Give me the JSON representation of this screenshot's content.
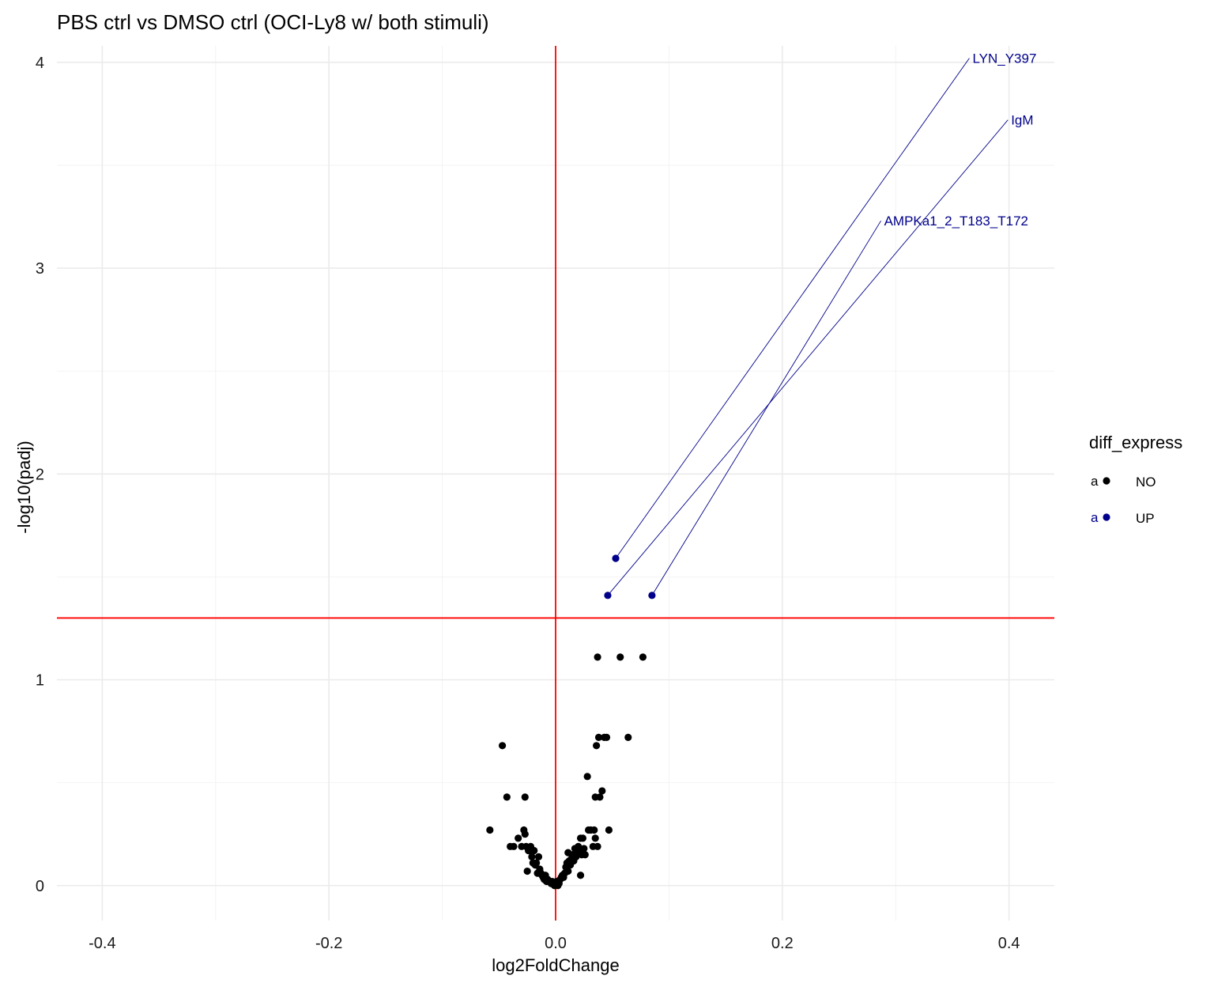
{
  "chart_data": {
    "type": "scatter",
    "title": "PBS ctrl vs DMSO ctrl (OCI-Ly8 w/ both stimuli)",
    "xlabel": "log2FoldChange",
    "ylabel": "-log10(padj)",
    "xlim": [
      -0.44,
      0.44
    ],
    "ylim": [
      -0.17,
      4.08
    ],
    "x_ticks": [
      -0.4,
      -0.2,
      0.0,
      0.2,
      0.4
    ],
    "x_tick_labels": [
      "-0.4",
      "-0.2",
      "0.0",
      "0.2",
      "0.4"
    ],
    "y_ticks": [
      0,
      1,
      2,
      3,
      4
    ],
    "y_tick_labels": [
      "0",
      "1",
      "2",
      "3",
      "4"
    ],
    "grid": true,
    "reference_lines": {
      "color": "#ff0000",
      "vertical_x": 0.0,
      "horizontal_y": 1.3
    },
    "legend": {
      "title": "diff_express",
      "position": "right",
      "key_glyph_text": "a",
      "entries": [
        {
          "label": "NO",
          "color": "#000000"
        },
        {
          "label": "UP",
          "color": "#00008b"
        }
      ]
    },
    "series": [
      {
        "name": "NO",
        "color": "#000000",
        "points": [
          [
            -0.058,
            0.27
          ],
          [
            -0.047,
            0.68
          ],
          [
            -0.043,
            0.43
          ],
          [
            -0.04,
            0.19
          ],
          [
            -0.037,
            0.19
          ],
          [
            -0.033,
            0.23
          ],
          [
            -0.03,
            0.19
          ],
          [
            -0.028,
            0.27
          ],
          [
            -0.027,
            0.25
          ],
          [
            -0.027,
            0.43
          ],
          [
            -0.026,
            0.19
          ],
          [
            -0.025,
            0.07
          ],
          [
            -0.024,
            0.17
          ],
          [
            -0.023,
            0.17
          ],
          [
            -0.022,
            0.19
          ],
          [
            -0.021,
            0.14
          ],
          [
            -0.02,
            0.11
          ],
          [
            -0.019,
            0.17
          ],
          [
            -0.018,
            0.1
          ],
          [
            -0.017,
            0.11
          ],
          [
            -0.016,
            0.06
          ],
          [
            -0.015,
            0.14
          ],
          [
            -0.014,
            0.08
          ],
          [
            -0.013,
            0.06
          ],
          [
            -0.012,
            0.05
          ],
          [
            -0.011,
            0.04
          ],
          [
            -0.01,
            0.03
          ],
          [
            -0.009,
            0.05
          ],
          [
            -0.008,
            0.02
          ],
          [
            -0.007,
            0.03
          ],
          [
            -0.005,
            0.02
          ],
          [
            -0.004,
            0.01
          ],
          [
            -0.003,
            0.02
          ],
          [
            -0.002,
            0.01
          ],
          [
            -0.001,
            0.0
          ],
          [
            0.0,
            0.01
          ],
          [
            0.001,
            0.02
          ],
          [
            0.002,
            0.0
          ],
          [
            0.003,
            0.01
          ],
          [
            0.004,
            0.03
          ],
          [
            0.005,
            0.04
          ],
          [
            0.006,
            0.05
          ],
          [
            0.007,
            0.04
          ],
          [
            0.008,
            0.06
          ],
          [
            0.009,
            0.09
          ],
          [
            0.01,
            0.11
          ],
          [
            0.011,
            0.07
          ],
          [
            0.011,
            0.16
          ],
          [
            0.012,
            0.12
          ],
          [
            0.013,
            0.1
          ],
          [
            0.014,
            0.13
          ],
          [
            0.015,
            0.15
          ],
          [
            0.016,
            0.12
          ],
          [
            0.017,
            0.18
          ],
          [
            0.018,
            0.14
          ],
          [
            0.019,
            0.17
          ],
          [
            0.02,
            0.19
          ],
          [
            0.021,
            0.16
          ],
          [
            0.022,
            0.23
          ],
          [
            0.023,
            0.15
          ],
          [
            0.024,
            0.23
          ],
          [
            0.025,
            0.18
          ],
          [
            0.022,
            0.05
          ],
          [
            0.026,
            0.15
          ],
          [
            0.028,
            0.53
          ],
          [
            0.029,
            0.27
          ],
          [
            0.031,
            0.27
          ],
          [
            0.033,
            0.19
          ],
          [
            0.034,
            0.27
          ],
          [
            0.035,
            0.23
          ],
          [
            0.035,
            0.43
          ],
          [
            0.036,
            0.68
          ],
          [
            0.037,
            0.19
          ],
          [
            0.038,
            0.72
          ],
          [
            0.039,
            0.43
          ],
          [
            0.041,
            0.46
          ],
          [
            0.043,
            0.72
          ],
          [
            0.045,
            0.72
          ],
          [
            0.047,
            0.27
          ],
          [
            0.037,
            1.11
          ],
          [
            0.057,
            1.11
          ],
          [
            0.064,
            0.72
          ],
          [
            0.077,
            1.11
          ]
        ]
      },
      {
        "name": "UP",
        "color": "#00008b",
        "points": [
          [
            0.053,
            1.59
          ],
          [
            0.046,
            1.41
          ],
          [
            0.085,
            1.41
          ]
        ]
      }
    ],
    "labels": [
      {
        "text": "LYN_Y397",
        "point": [
          0.053,
          1.59
        ],
        "label_at": [
          0.365,
          4.02
        ]
      },
      {
        "text": "IgM",
        "point": [
          0.046,
          1.41
        ],
        "label_at": [
          0.399,
          3.72
        ]
      },
      {
        "text": "AMPKa1_2_T183_T172",
        "point": [
          0.085,
          1.41
        ],
        "label_at": [
          0.287,
          3.23
        ]
      }
    ]
  }
}
